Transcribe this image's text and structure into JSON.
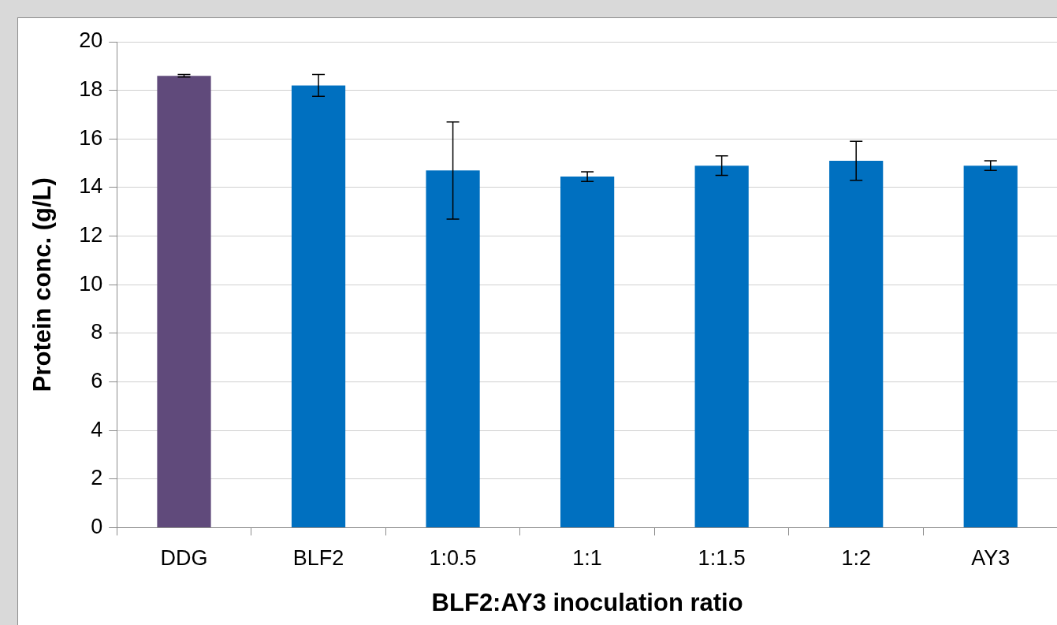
{
  "chart_data": {
    "type": "bar",
    "xlabel": "BLF2:AY3 inoculation ratio",
    "ylabel": "Protein conc. (g/L)",
    "categories": [
      "DDG",
      "BLF2",
      "1:0.5",
      "1:1",
      "1:1.5",
      "1:2",
      "AY3"
    ],
    "values": [
      18.6,
      18.2,
      14.7,
      14.45,
      14.9,
      15.1,
      14.9
    ],
    "errors": [
      0.05,
      0.45,
      2.0,
      0.2,
      0.4,
      0.8,
      0.2
    ],
    "colors": [
      "#604a7b",
      "#0070c0",
      "#0070c0",
      "#0070c0",
      "#0070c0",
      "#0070c0",
      "#0070c0"
    ],
    "ylim": [
      0,
      20
    ],
    "yticks": [
      0,
      2,
      4,
      6,
      8,
      10,
      12,
      14,
      16,
      18,
      20
    ],
    "grid": "y"
  }
}
